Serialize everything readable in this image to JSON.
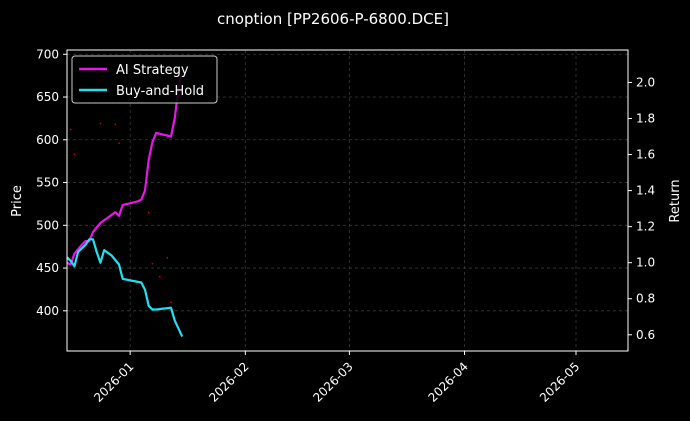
{
  "chart_data": {
    "type": "line",
    "title": "cnoption [PP2606-P-6800.DCE]",
    "ylabel": "Price",
    "ylabel_right": "Return",
    "x_range": [
      "2025-12-15",
      "2026-05-15"
    ],
    "x_ticks": [
      "2026-01-01",
      "2026-02-01",
      "2026-03-01",
      "2026-04-01",
      "2026-05-01"
    ],
    "x_tick_labels": [
      "2026-01",
      "2026-02",
      "2026-03",
      "2026-04",
      "2026-05"
    ],
    "ylim_left": [
      353,
      705
    ],
    "ylim_right": [
      0.51,
      2.18
    ],
    "y_ticks_left": [
      400,
      450,
      500,
      550,
      600,
      650,
      700
    ],
    "y_ticks_right": [
      0.6,
      0.8,
      1.0,
      1.2,
      1.4,
      1.6,
      1.8,
      2.0
    ],
    "grid": true,
    "legend_position": "top-left",
    "colors": {
      "background": "#000000",
      "ai_strategy": "#e817e8",
      "buy_and_hold": "#22e0f0",
      "price_dots": "#cc0000",
      "grid": "#3a3a3a",
      "axis": "#ffffff"
    },
    "series": [
      {
        "name": "AI Strategy",
        "axis": "right",
        "points": [
          [
            "2025-12-15",
            1.0
          ],
          [
            "2025-12-16",
            0.99
          ],
          [
            "2025-12-17",
            1.05
          ],
          [
            "2025-12-19",
            1.1
          ],
          [
            "2025-12-20",
            1.12
          ],
          [
            "2025-12-21",
            1.12
          ],
          [
            "2025-12-22",
            1.17
          ],
          [
            "2025-12-24",
            1.22
          ],
          [
            "2025-12-26",
            1.25
          ],
          [
            "2025-12-28",
            1.28
          ],
          [
            "2025-12-29",
            1.26
          ],
          [
            "2025-12-30",
            1.32
          ],
          [
            "2026-01-03",
            1.34
          ],
          [
            "2026-01-04",
            1.35
          ],
          [
            "2026-01-05",
            1.4
          ],
          [
            "2026-01-06",
            1.57
          ],
          [
            "2026-01-07",
            1.67
          ],
          [
            "2026-01-08",
            1.72
          ],
          [
            "2026-01-12",
            1.7
          ],
          [
            "2026-01-13",
            1.8
          ],
          [
            "2026-01-14",
            1.97
          ],
          [
            "2026-01-15",
            2.05
          ]
        ]
      },
      {
        "name": "Buy-and-Hold",
        "axis": "right",
        "points": [
          [
            "2025-12-15",
            1.03
          ],
          [
            "2025-12-16",
            1.01
          ],
          [
            "2025-12-17",
            0.98
          ],
          [
            "2025-12-18",
            1.06
          ],
          [
            "2025-12-20",
            1.1
          ],
          [
            "2025-12-21",
            1.13
          ],
          [
            "2025-12-22",
            1.13
          ],
          [
            "2025-12-23",
            1.06
          ],
          [
            "2025-12-24",
            1.0
          ],
          [
            "2025-12-25",
            1.07
          ],
          [
            "2025-12-27",
            1.04
          ],
          [
            "2025-12-29",
            0.99
          ],
          [
            "2025-12-30",
            0.91
          ],
          [
            "2026-01-04",
            0.89
          ],
          [
            "2026-01-05",
            0.85
          ],
          [
            "2026-01-06",
            0.76
          ],
          [
            "2026-01-07",
            0.74
          ],
          [
            "2026-01-08",
            0.74
          ],
          [
            "2026-01-12",
            0.75
          ],
          [
            "2026-01-13",
            0.68
          ],
          [
            "2026-01-15",
            0.59
          ]
        ]
      }
    ],
    "price_dots": {
      "axis": "left",
      "points": [
        [
          "2025-12-16",
          612
        ],
        [
          "2025-12-17",
          583
        ],
        [
          "2025-12-24",
          619
        ],
        [
          "2025-12-28",
          618
        ],
        [
          "2025-12-29",
          596
        ],
        [
          "2026-01-05",
          540
        ],
        [
          "2026-01-06",
          515
        ],
        [
          "2026-01-07",
          455
        ],
        [
          "2026-01-09",
          440
        ],
        [
          "2026-01-11",
          462
        ],
        [
          "2026-01-12",
          410
        ]
      ]
    }
  }
}
